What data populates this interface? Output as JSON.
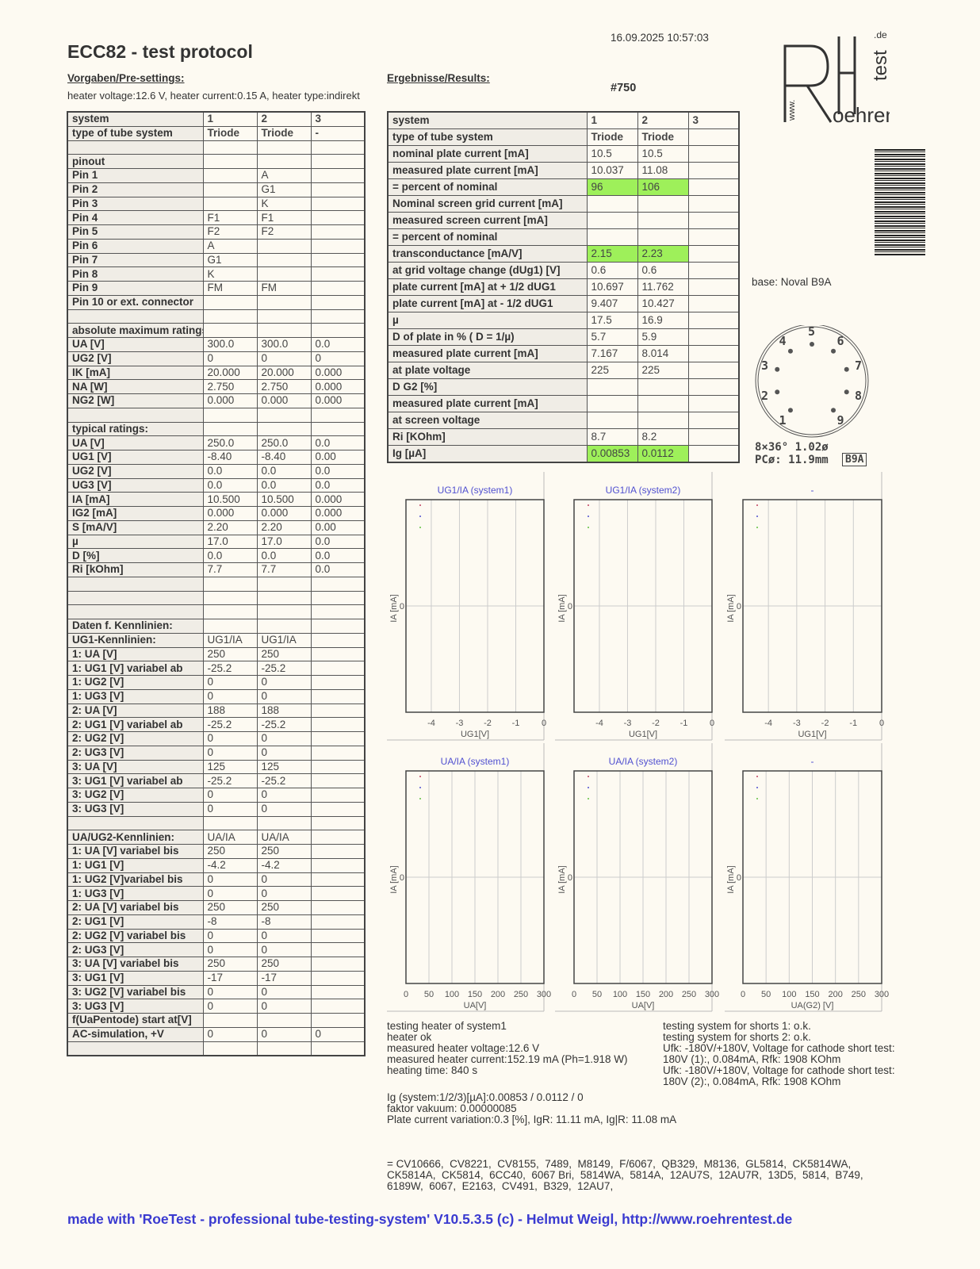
{
  "header": {
    "title": "ECC82  -  test protocol",
    "timestamp": "16.09.2025  10:57:03",
    "serial": "#750"
  },
  "logo": {
    "text": "www.Roehrentest.de"
  },
  "presettings": {
    "heading": "Vorgaben/Pre-settings:",
    "heater": "heater voltage:12.6 V, heater current:0.15 A, heater type:indirekt"
  },
  "results": {
    "heading": "Ergebnisse/Results:"
  },
  "left_table": [
    [
      "system",
      "1",
      "2",
      "3"
    ],
    [
      "type of tube system",
      "Triode",
      "Triode",
      "-"
    ],
    [
      "",
      "",
      "",
      ""
    ],
    [
      "pinout",
      "",
      "",
      ""
    ],
    [
      "Pin 1",
      "",
      "A",
      ""
    ],
    [
      "Pin 2",
      "",
      "G1",
      ""
    ],
    [
      "Pin 3",
      "",
      "K",
      ""
    ],
    [
      "Pin 4",
      "F1",
      "F1",
      ""
    ],
    [
      "Pin 5",
      "F2",
      "F2",
      ""
    ],
    [
      "Pin 6",
      "A",
      "",
      ""
    ],
    [
      "Pin 7",
      "G1",
      "",
      ""
    ],
    [
      "Pin 8",
      "K",
      "",
      ""
    ],
    [
      "Pin 9",
      "FM",
      "FM",
      ""
    ],
    [
      "Pin 10 or ext. connector",
      "",
      "",
      ""
    ],
    [
      "",
      "",
      "",
      ""
    ],
    [
      "absolute maximum ratings",
      "",
      "",
      ""
    ],
    [
      "UA [V]",
      "300.0",
      "300.0",
      "0.0"
    ],
    [
      "UG2 [V]",
      "0",
      "0",
      "0"
    ],
    [
      "IK [mA]",
      "20.000",
      "20.000",
      "0.000"
    ],
    [
      "NA [W]",
      "2.750",
      "2.750",
      "0.000"
    ],
    [
      "NG2 [W]",
      "0.000",
      "0.000",
      "0.000"
    ],
    [
      "",
      "",
      "",
      ""
    ],
    [
      "typical ratings:",
      "",
      "",
      ""
    ],
    [
      "UA [V]",
      "250.0",
      "250.0",
      "0.0"
    ],
    [
      "UG1 [V]",
      "-8.40",
      "-8.40",
      "0.00"
    ],
    [
      "UG2 [V]",
      "0.0",
      "0.0",
      "0.0"
    ],
    [
      "UG3 [V]",
      "0.0",
      "0.0",
      "0.0"
    ],
    [
      "IA [mA]",
      "10.500",
      "10.500",
      "0.000"
    ],
    [
      "IG2 [mA]",
      "0.000",
      "0.000",
      "0.000"
    ],
    [
      "S [mA/V]",
      "2.20",
      "2.20",
      "0.00"
    ],
    [
      "µ",
      "17.0",
      "17.0",
      "0.0"
    ],
    [
      "D [%]",
      "0.0",
      "0.0",
      "0.0"
    ],
    [
      "Ri [kOhm]",
      "7.7",
      "7.7",
      "0.0"
    ],
    [
      "",
      "",
      "",
      ""
    ],
    [
      "",
      "",
      "",
      ""
    ],
    [
      "",
      "",
      "",
      ""
    ],
    [
      "Daten f. Kennlinien:",
      "",
      "",
      ""
    ],
    [
      "UG1-Kennlinien:",
      "UG1/IA",
      "UG1/IA",
      ""
    ],
    [
      "1: UA [V]",
      "250",
      "250",
      ""
    ],
    [
      "1: UG1 [V] variabel ab",
      "-25.2",
      "-25.2",
      ""
    ],
    [
      "1: UG2 [V]",
      "0",
      "0",
      ""
    ],
    [
      "1: UG3 [V]",
      "0",
      "0",
      ""
    ],
    [
      "2: UA [V]",
      "188",
      "188",
      ""
    ],
    [
      "2: UG1 [V] variabel ab",
      "-25.2",
      "-25.2",
      ""
    ],
    [
      "2: UG2 [V]",
      "0",
      "0",
      ""
    ],
    [
      "2: UG3 [V]",
      "0",
      "0",
      ""
    ],
    [
      "3: UA [V]",
      "125",
      "125",
      ""
    ],
    [
      "3: UG1 [V] variabel ab",
      "-25.2",
      "-25.2",
      ""
    ],
    [
      "3: UG2 [V]",
      "0",
      "0",
      ""
    ],
    [
      "3: UG3 [V]",
      "0",
      "0",
      ""
    ],
    [
      "",
      "",
      "",
      ""
    ],
    [
      "UA/UG2-Kennlinien:",
      "UA/IA",
      "UA/IA",
      ""
    ],
    [
      "1: UA [V] variabel bis",
      "250",
      "250",
      ""
    ],
    [
      "1: UG1 [V]",
      "-4.2",
      "-4.2",
      ""
    ],
    [
      "1: UG2 [V]variabel bis",
      "0",
      "0",
      ""
    ],
    [
      "1: UG3 [V]",
      "0",
      "0",
      ""
    ],
    [
      "2: UA [V] variabel bis",
      "250",
      "250",
      ""
    ],
    [
      "2: UG1 [V]",
      "-8",
      "-8",
      ""
    ],
    [
      "2: UG2 [V] variabel bis",
      "0",
      "0",
      ""
    ],
    [
      "2: UG3 [V]",
      "0",
      "0",
      ""
    ],
    [
      "3: UA [V] variabel bis",
      "250",
      "250",
      ""
    ],
    [
      "3: UG1 [V]",
      "-17",
      "-17",
      ""
    ],
    [
      "3: UG2 [V] variabel bis",
      "0",
      "0",
      ""
    ],
    [
      "3: UG3 [V]",
      "0",
      "0",
      ""
    ],
    [
      "f(UaPentode) start at[V]",
      "",
      "",
      ""
    ],
    [
      "AC-simulation, +V",
      "0",
      "0",
      "0"
    ],
    [
      "",
      "",
      "",
      ""
    ]
  ],
  "right_table": [
    [
      "system",
      "1",
      "2",
      "3"
    ],
    [
      "type of tube system",
      "Triode",
      "Triode",
      ""
    ],
    [
      "nominal plate current [mA]",
      "10.5",
      "10.5",
      ""
    ],
    [
      "measured plate current [mA]",
      "10.037",
      "11.08",
      ""
    ],
    [
      "= percent of nominal",
      "96",
      "106",
      ""
    ],
    [
      "Nominal screen grid current [mA]",
      "",
      "",
      ""
    ],
    [
      "measured screen current [mA]",
      "",
      "",
      ""
    ],
    [
      "= percent of nominal",
      "",
      "",
      ""
    ],
    [
      "transconductance [mA/V]",
      "2.15",
      "2.23",
      ""
    ],
    [
      "at grid voltage change (dUg1) [V]",
      "0.6",
      "0.6",
      ""
    ],
    [
      "plate current [mA] at + 1/2 dUG1",
      "10.697",
      "11.762",
      ""
    ],
    [
      "plate current [mA] at - 1/2 dUG1",
      "9.407",
      "10.427",
      ""
    ],
    [
      "µ",
      "17.5",
      "16.9",
      ""
    ],
    [
      "D of plate in % ( D = 1/µ)",
      "5.7",
      "5.9",
      ""
    ],
    [
      "measured plate current [mA]",
      "7.167",
      "8.014",
      ""
    ],
    [
      "at plate voltage",
      "225",
      "225",
      ""
    ],
    [
      "D G2 [%]",
      "",
      "",
      ""
    ],
    [
      "measured plate current [mA]",
      "",
      "",
      ""
    ],
    [
      "at screen voltage",
      "",
      "",
      ""
    ],
    [
      "Ri [KOhm]",
      "8.7",
      "8.2",
      ""
    ],
    [
      "Ig [µA]",
      "0.00853",
      "0.0112",
      ""
    ]
  ],
  "highlight_color": "#9ef05a",
  "highlight_rows": [
    4,
    8,
    20
  ],
  "base": {
    "label": "base: Noval B9A",
    "spec1": "8×36°  1.02ø",
    "spec2": "PCø: 11.9mm",
    "code": "B9A",
    "pins": [
      "1",
      "2",
      "3",
      "4",
      "5",
      "6",
      "7",
      "8",
      "9"
    ]
  },
  "chart_data": [
    {
      "type": "line",
      "title": "UG1/IA (system1)",
      "xlabel": "UG1[V]",
      "ylabel": "IA [mA]",
      "xticks": [
        "-4",
        "-3",
        "-2",
        "-1",
        "0"
      ],
      "yticks": [
        "0"
      ],
      "xlim": [
        -4.9,
        0
      ],
      "grid": true,
      "series": []
    },
    {
      "type": "line",
      "title": "UG1/IA (system2)",
      "xlabel": "UG1[V]",
      "ylabel": "IA [mA]",
      "xticks": [
        "-4",
        "-3",
        "-2",
        "-1",
        "0"
      ],
      "yticks": [
        "0"
      ],
      "xlim": [
        -4.9,
        0
      ],
      "grid": true,
      "series": []
    },
    {
      "type": "line",
      "title": "-",
      "xlabel": "UG1[V]",
      "ylabel": "IA [mA]",
      "xticks": [
        "-4",
        "-3",
        "-2",
        "-1",
        "0"
      ],
      "yticks": [
        "0"
      ],
      "xlim": [
        -4.9,
        0
      ],
      "grid": true,
      "series": []
    },
    {
      "type": "line",
      "title": "UA/IA (system1)",
      "xlabel": "UA[V]",
      "ylabel": "IA [mA]",
      "xticks": [
        "0",
        "50",
        "100",
        "150",
        "200",
        "250",
        "300"
      ],
      "yticks": [
        "0"
      ],
      "xlim": [
        0,
        300
      ],
      "grid": true,
      "series": []
    },
    {
      "type": "line",
      "title": "UA/IA (system2)",
      "xlabel": "UA[V]",
      "ylabel": "IA [mA]",
      "xticks": [
        "0",
        "50",
        "100",
        "150",
        "200",
        "250",
        "300"
      ],
      "yticks": [
        "0"
      ],
      "xlim": [
        0,
        300
      ],
      "grid": true,
      "series": []
    },
    {
      "type": "line",
      "title": "-",
      "xlabel": "UA(G2) [V]",
      "ylabel": "IA [mA]",
      "xticks": [
        "0",
        "50",
        "100",
        "150",
        "200",
        "250",
        "300"
      ],
      "yticks": [
        "0"
      ],
      "xlim": [
        0,
        300
      ],
      "grid": true,
      "series": []
    }
  ],
  "chart_style": {
    "title_color": "#5050d0",
    "legend_dot_colors": [
      "#c04060",
      "#5050d0",
      "#60c040"
    ]
  },
  "heater_test": "testing heater of system1\nheater ok\nmeasured heater voltage:12.6 V\nmeasured heater current:152.19 mA (Ph=1.918 W)\nheating time: 840 s",
  "shorts_test": "testing system for shorts 1: o.k.\ntesting system for shorts 2: o.k.\nUfk: -180V/+180V, Voltage for cathode short test:\n180V (1):, 0.084mA, Rfk: 1908 KOhm\nUfk: -180V/+180V, Voltage for cathode short test:\n180V (2):, 0.084mA, Rfk: 1908 KOhm",
  "ig_text": "Ig (system:1/2/3)[µA]:0.00853 / 0.0112 / 0\nfaktor vakuum: 0.00000085\nPlate current variation:0.3 [%], IgR: 11.11 mA, Ig|R: 11.08 mA",
  "equivalents": "= CV10666,  CV8221,  CV8155,  7489,  M8149,  F/6067,  QB329,  M8136,  GL5814,  CK5814WA,\nCK5814A,  CK5814,  6CC40,  6067 Bri,  5814WA,  5814A,  12AU7S,  12AU7R,  13D5,  5814,  B749,\n6189W,  6067,  E2163,  CV491,  B329,  12AU7,",
  "footer": "made with 'RoeTest - professional tube-testing-system' V10.5.3.5 (c) - Helmut Weigl, http://www.roehrentest.de"
}
